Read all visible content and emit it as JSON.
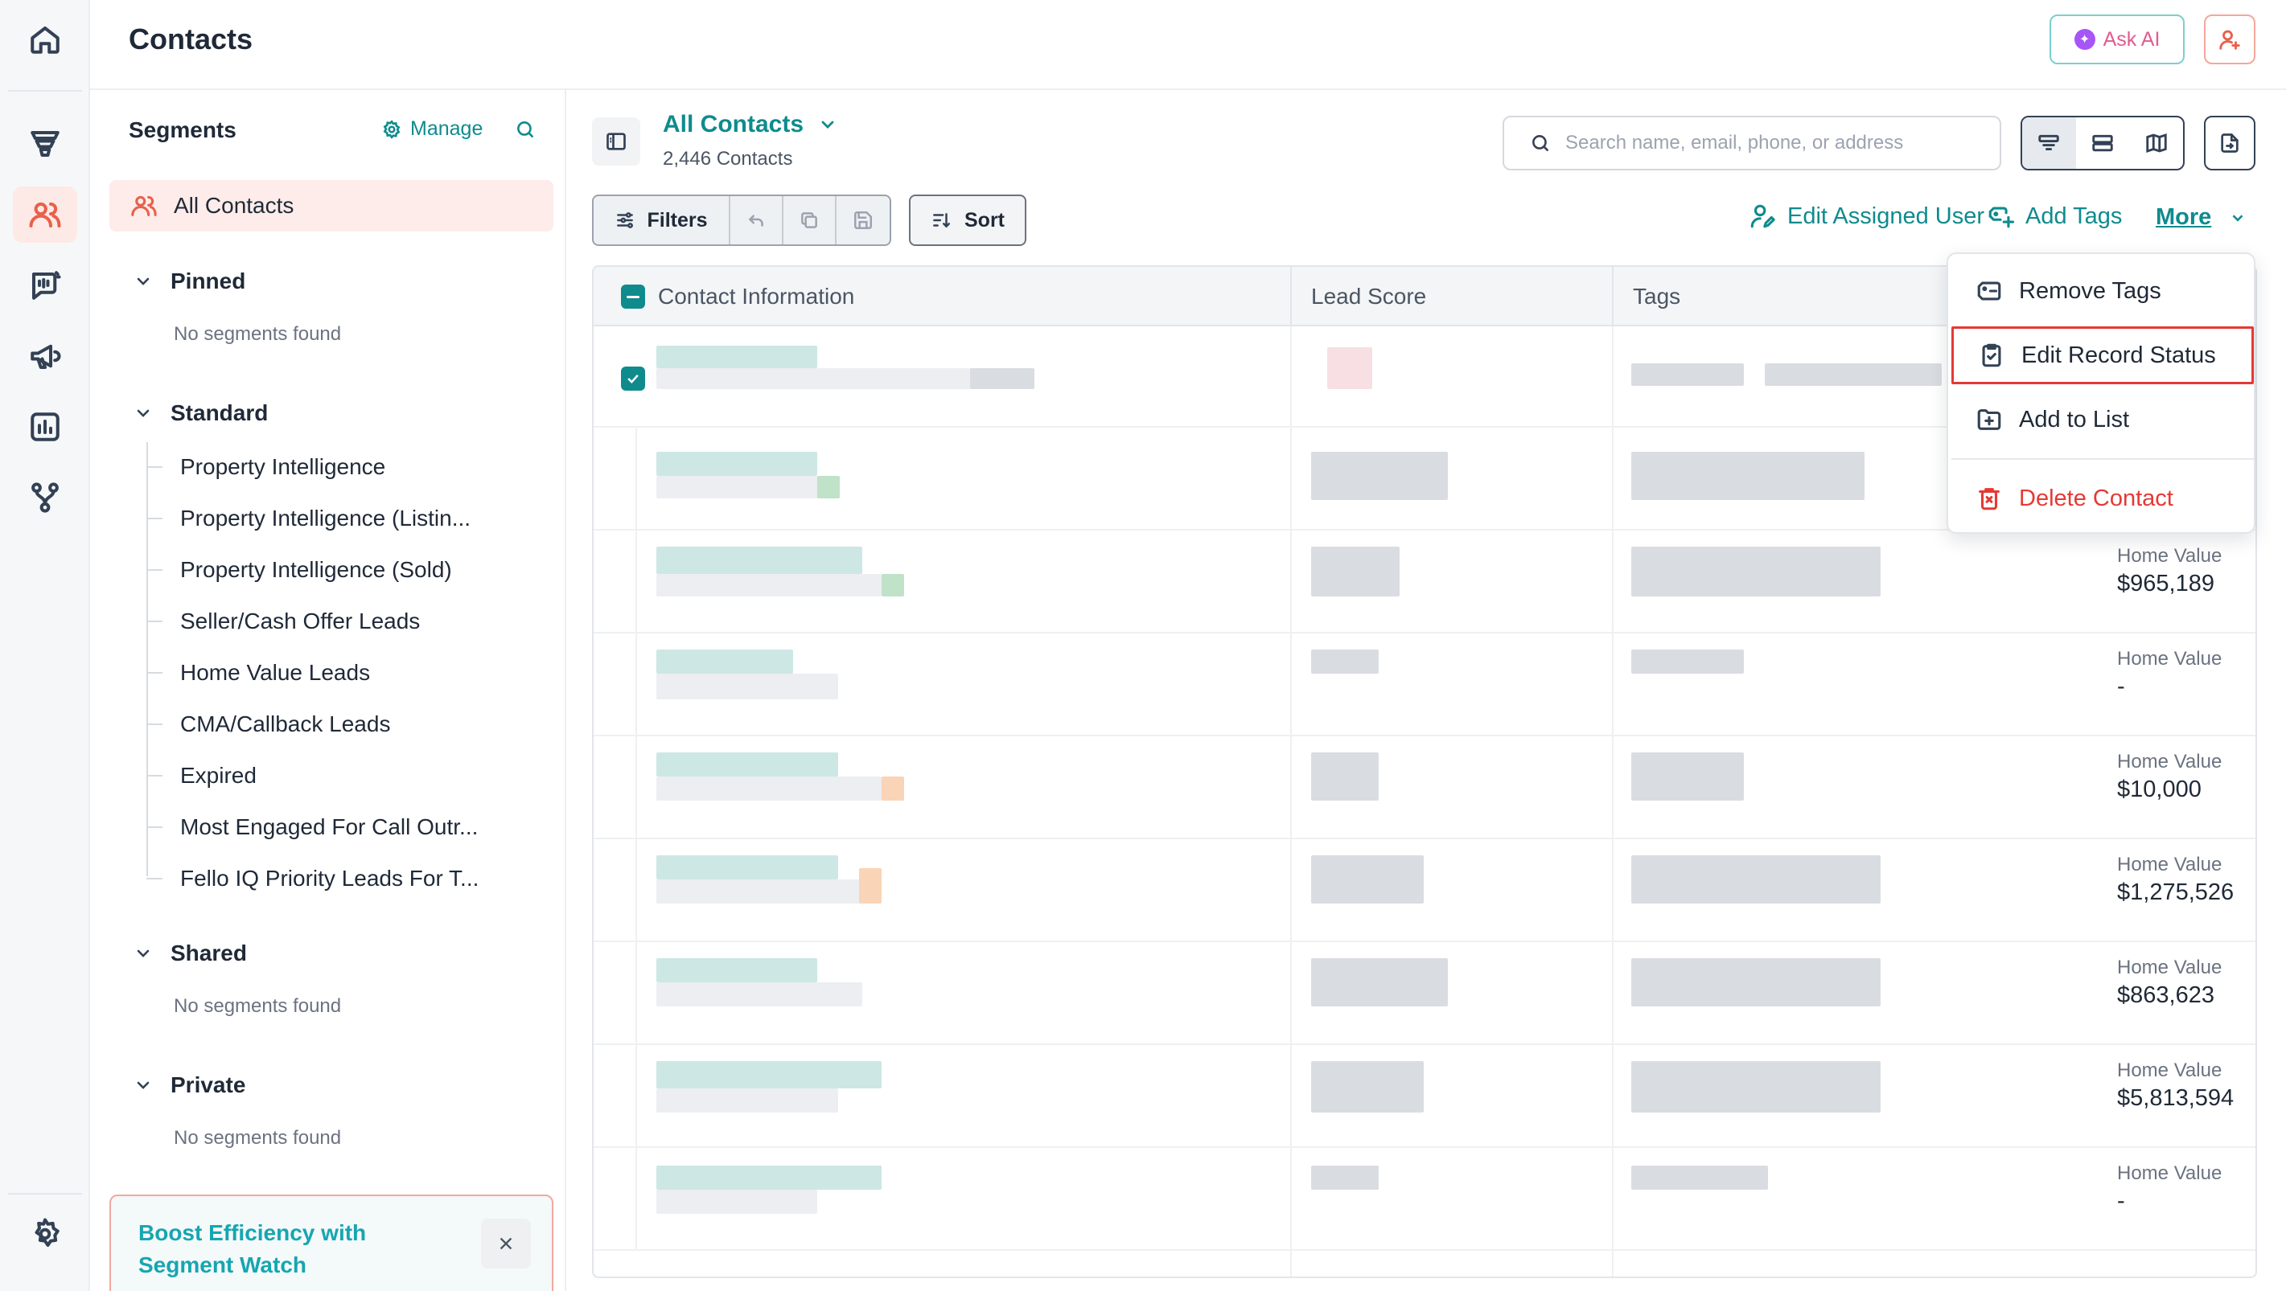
{
  "header": {
    "title": "Contacts",
    "ask_ai": "Ask AI"
  },
  "rail": {
    "items": [
      "home-icon",
      "funnel-icon",
      "contacts-icon",
      "dialer-icon",
      "megaphone-icon",
      "analytics-icon",
      "workflow-icon",
      "settings-icon"
    ]
  },
  "segments": {
    "title": "Segments",
    "manage": "Manage",
    "all_contacts": "All Contacts",
    "pinned": {
      "label": "Pinned",
      "empty": "No segments found"
    },
    "standard": {
      "label": "Standard",
      "items": [
        "Property Intelligence",
        "Property Intelligence (Listin...",
        "Property Intelligence (Sold)",
        "Seller/Cash Offer Leads",
        "Home Value Leads",
        "CMA/Callback Leads",
        "Expired",
        "Most Engaged For Call Outr...",
        "Fello IQ Priority Leads For T..."
      ]
    },
    "shared": {
      "label": "Shared",
      "empty": "No segments found"
    },
    "private": {
      "label": "Private",
      "empty": "No segments found"
    },
    "boost": {
      "text": "Boost Efficiency with Segment Watch"
    }
  },
  "view": {
    "title": "All Contacts",
    "count": "2,446 Contacts",
    "search_placeholder": "Search name, email, phone, or address"
  },
  "toolbar": {
    "filters": "Filters",
    "sort": "Sort",
    "edit_assigned_user": "Edit Assigned User",
    "add_tags": "Add Tags",
    "more": "More"
  },
  "table": {
    "columns": [
      "Contact Information",
      "Lead Score",
      "Tags"
    ],
    "rows": [
      {
        "label": "",
        "value": ""
      },
      {
        "label": "",
        "value": ""
      },
      {
        "label": "Home Value",
        "value": "$965,189"
      },
      {
        "label": "Home Value",
        "value": "-"
      },
      {
        "label": "Home Value",
        "value": "$10,000"
      },
      {
        "label": "Home Value",
        "value": "$1,275,526"
      },
      {
        "label": "Home Value",
        "value": "$863,623"
      },
      {
        "label": "Home Value",
        "value": "$5,813,594"
      },
      {
        "label": "Home Value",
        "value": "-"
      }
    ]
  },
  "more_menu": {
    "items": [
      "Remove Tags",
      "Edit Record Status",
      "Add to List",
      "Delete Contact"
    ]
  },
  "colors": {
    "accent": "#0f8b8d",
    "brand": "#e8614b",
    "danger": "#e53935"
  }
}
